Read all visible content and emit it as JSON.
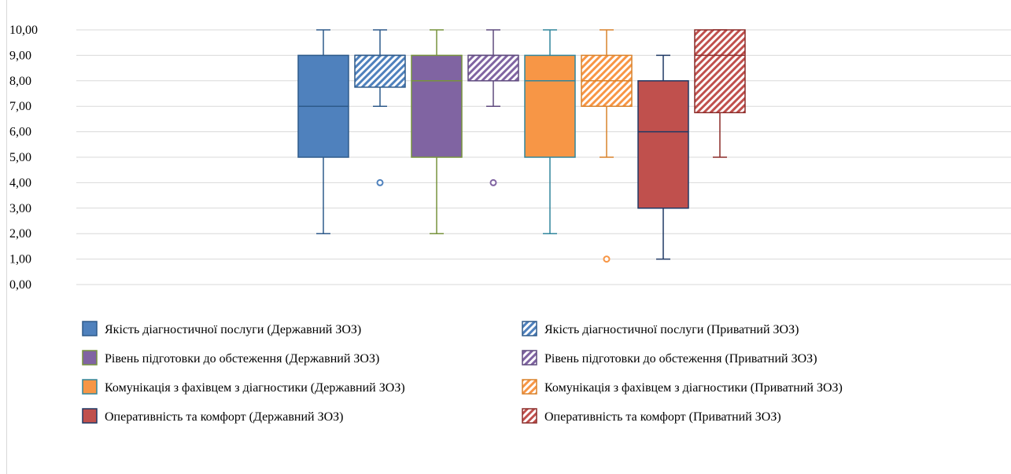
{
  "chart_data": {
    "type": "boxplot",
    "ylim": [
      0,
      10
    ],
    "ytick_labels": [
      "0,00",
      "1,00",
      "2,00",
      "3,00",
      "4,00",
      "5,00",
      "6,00",
      "7,00",
      "8,00",
      "9,00",
      "10,00"
    ],
    "grid": true,
    "legend_position": "bottom",
    "series": [
      {
        "name": "Якість діагностичної послуги (Державний ЗОЗ)",
        "color": "#4f81bd",
        "edge": "#2e5a8a",
        "pattern": false,
        "min": 2,
        "q1": 5,
        "median": 7,
        "q3": 9,
        "max": 10,
        "outliers": []
      },
      {
        "name": "Якість діагностичної послуги (Приватний ЗОЗ)",
        "color": "#4f81bd",
        "edge": "#2e5a8a",
        "pattern": true,
        "min": 7,
        "q1": 7.75,
        "median": 9,
        "q3": 9,
        "max": 10,
        "outliers": [
          4
        ]
      },
      {
        "name": "Рівень підготовки до обстеження (Державний ЗОЗ)",
        "color": "#8064a2",
        "edge": "#77933c",
        "pattern": false,
        "min": 2,
        "q1": 5,
        "median": 8,
        "q3": 9,
        "max": 10,
        "outliers": []
      },
      {
        "name": "Рівень підготовки до обстеження (Приватний ЗОЗ)",
        "color": "#8064a2",
        "edge": "#5f4a7e",
        "pattern": true,
        "min": 7,
        "q1": 8,
        "median": 9,
        "q3": 9,
        "max": 10,
        "outliers": [
          4
        ]
      },
      {
        "name": "Комунікація з фахівцем з діагностики (Державний ЗОЗ)",
        "color": "#f79646",
        "edge": "#31859c",
        "pattern": false,
        "min": 2,
        "q1": 5,
        "median": 8,
        "q3": 9,
        "max": 10,
        "outliers": []
      },
      {
        "name": "Комунікація з фахівцем з діагностики (Приватний ЗОЗ)",
        "color": "#f79646",
        "edge": "#d9822b",
        "pattern": true,
        "min": 5,
        "q1": 7,
        "median": 8,
        "q3": 9,
        "max": 10,
        "outliers": [
          1
        ]
      },
      {
        "name": "Оперативність та комфорт (Державний ЗОЗ)",
        "color": "#c0504d",
        "edge": "#1f3864",
        "pattern": false,
        "min": 1,
        "q1": 3,
        "median": 6,
        "q3": 8,
        "max": 9,
        "outliers": []
      },
      {
        "name": "Оперативність та комфорт (Приватний ЗОЗ)",
        "color": "#c0504d",
        "edge": "#8b2b29",
        "pattern": true,
        "min": 5,
        "q1": 6.75,
        "median": 9,
        "q3": 10,
        "max": 10,
        "outliers": []
      }
    ]
  }
}
